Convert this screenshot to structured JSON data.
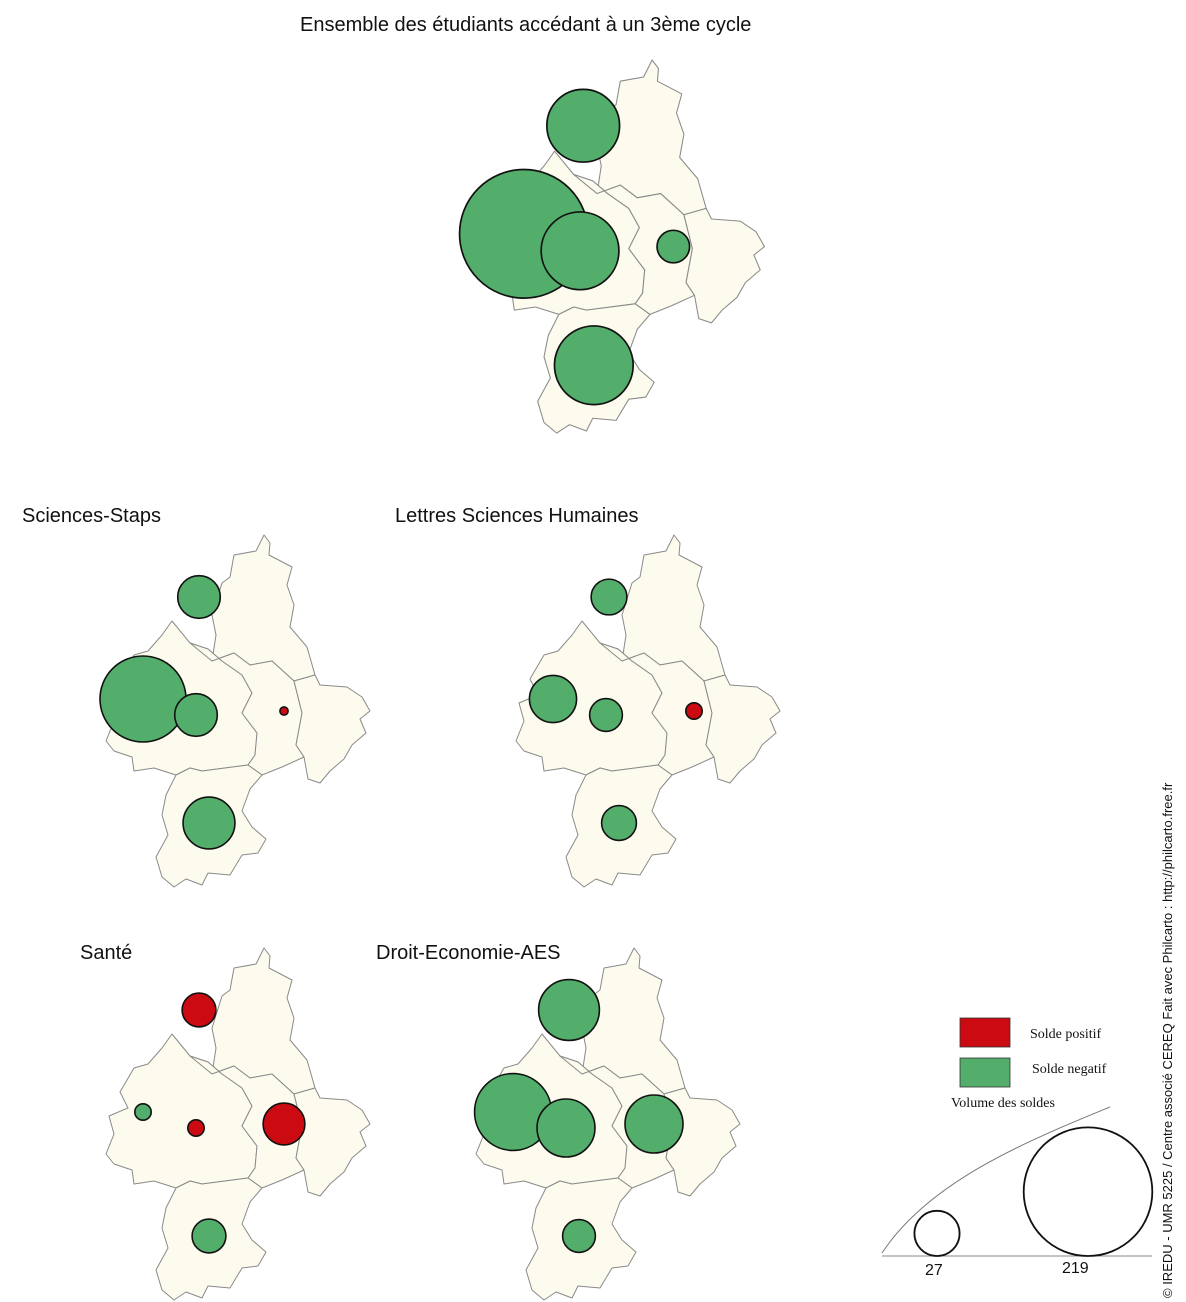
{
  "maps": [
    {
      "id": "ensemble",
      "title": "Ensemble des étudiants accédant à un 3ème cycle",
      "bubbles": [
        {
          "region": "north",
          "sign": "negatif",
          "value": 70
        },
        {
          "region": "west",
          "sign": "negatif",
          "value": 219
        },
        {
          "region": "center",
          "sign": "negatif",
          "value": 80
        },
        {
          "region": "east",
          "sign": "negatif",
          "value": 14
        },
        {
          "region": "south",
          "sign": "negatif",
          "value": 82
        }
      ]
    },
    {
      "id": "sciences",
      "title": "Sciences-Staps",
      "bubbles": [
        {
          "region": "north",
          "sign": "negatif",
          "value": 27
        },
        {
          "region": "west",
          "sign": "negatif",
          "value": 110
        },
        {
          "region": "center",
          "sign": "negatif",
          "value": 27
        },
        {
          "region": "east",
          "sign": "positif",
          "value": 1
        },
        {
          "region": "south",
          "sign": "negatif",
          "value": 40
        }
      ]
    },
    {
      "id": "lettres",
      "title": "Lettres Sciences Humaines",
      "bubbles": [
        {
          "region": "north",
          "sign": "negatif",
          "value": 19
        },
        {
          "region": "west",
          "sign": "negatif",
          "value": 33
        },
        {
          "region": "center",
          "sign": "negatif",
          "value": 16
        },
        {
          "region": "east",
          "sign": "positif",
          "value": 4
        },
        {
          "region": "south",
          "sign": "negatif",
          "value": 18
        }
      ]
    },
    {
      "id": "sante",
      "title": "Santé",
      "bubbles": [
        {
          "region": "north",
          "sign": "positif",
          "value": 17
        },
        {
          "region": "west",
          "sign": "negatif",
          "value": 4
        },
        {
          "region": "center",
          "sign": "positif",
          "value": 4
        },
        {
          "region": "east",
          "sign": "positif",
          "value": 26
        },
        {
          "region": "south",
          "sign": "negatif",
          "value": 17
        }
      ]
    },
    {
      "id": "droit",
      "title": "Droit-Economie-AES",
      "bubbles": [
        {
          "region": "north",
          "sign": "negatif",
          "value": 55
        },
        {
          "region": "west",
          "sign": "negatif",
          "value": 88
        },
        {
          "region": "center",
          "sign": "negatif",
          "value": 50
        },
        {
          "region": "east",
          "sign": "negatif",
          "value": 50
        },
        {
          "region": "south",
          "sign": "negatif",
          "value": 16
        }
      ]
    }
  ],
  "legend": {
    "positive_label": "Solde positif",
    "negative_label": "Solde negatif",
    "volume_title": "Volume des soldes",
    "scale_values": [
      27,
      219
    ]
  },
  "colors": {
    "positive": "#cc0a12",
    "negative": "#52ae6a",
    "region_fill": "#fdfbee",
    "region_stroke": "#8a8a8a"
  },
  "credit": "© IREDU - UMR 5225 / Centre associé CEREQ      Fait avec Philcarto :  http://philcarto.free.fr"
}
